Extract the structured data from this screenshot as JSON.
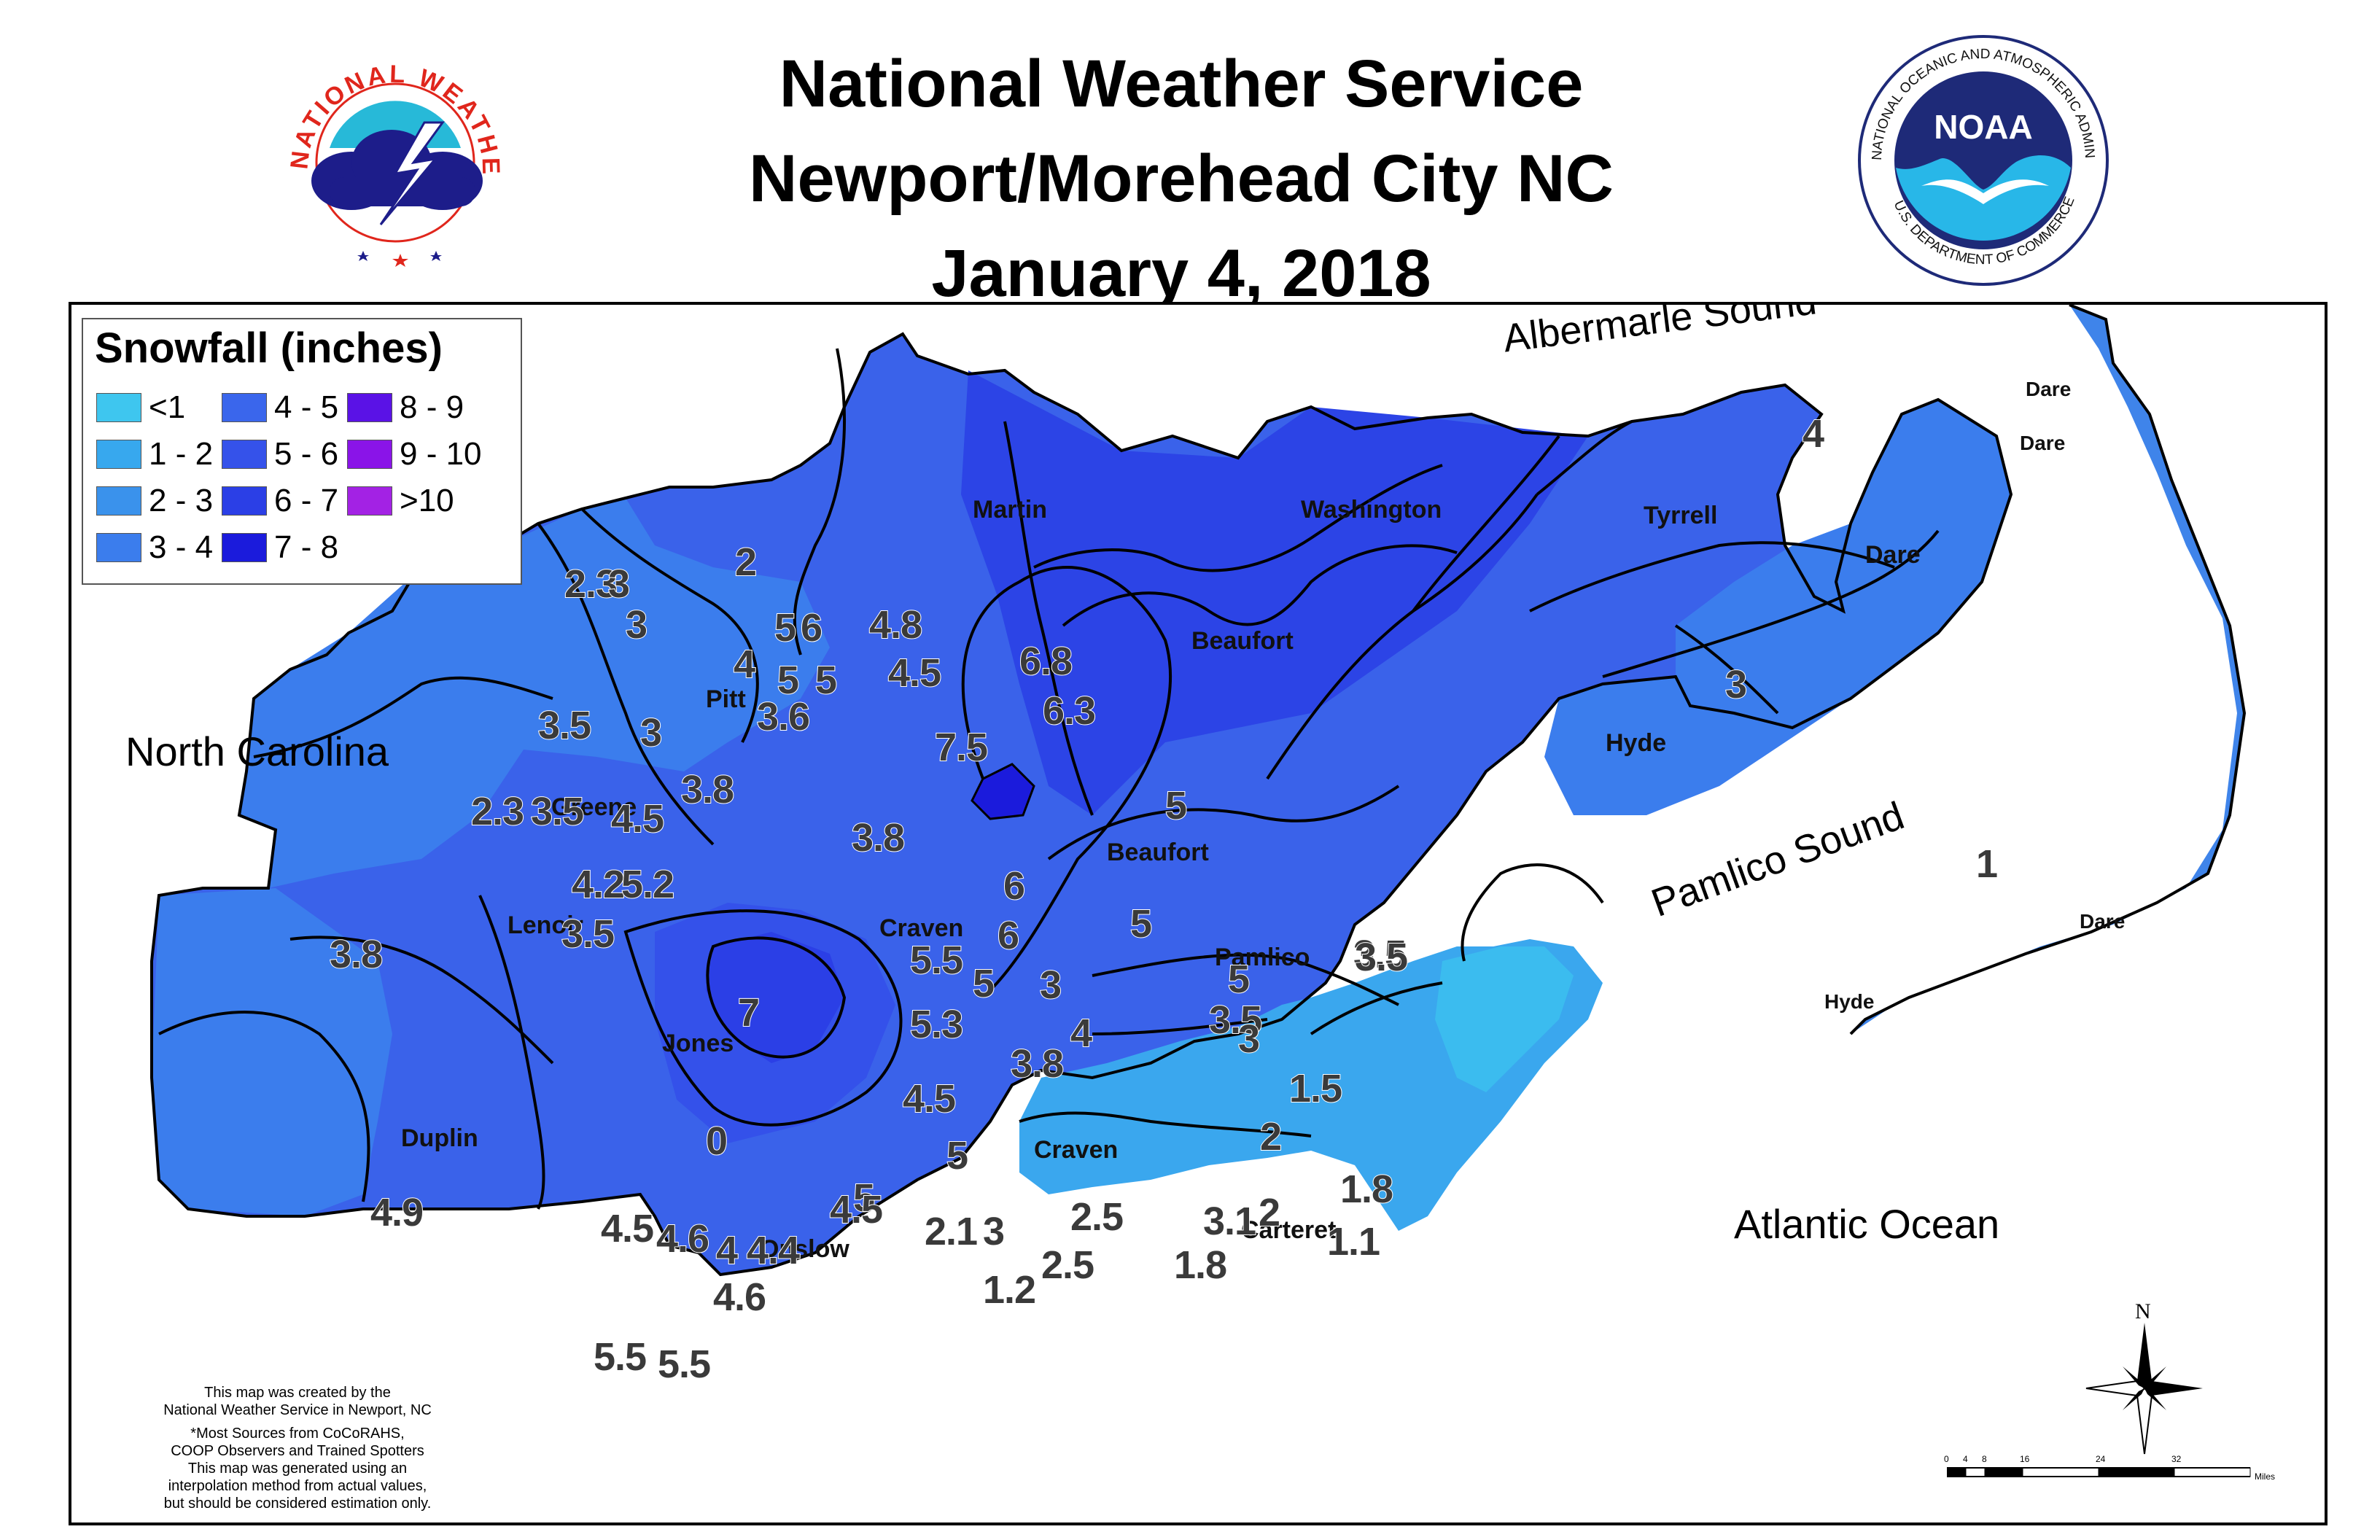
{
  "title": {
    "line1": "National Weather Service",
    "line2": "Newport/Morehead City NC",
    "line3": "January 4, 2018"
  },
  "logos": {
    "nws_text": "NATIONAL WEATHER SERVICE",
    "noaa_text": "NOAA",
    "noaa_ring": "NATIONAL OCEANIC AND ATMOSPHERIC ADMINISTRATION",
    "noaa_ring_bottom": "U.S. DEPARTMENT OF COMMERCE"
  },
  "legend": {
    "title": "Snowfall (inches)",
    "items": [
      {
        "label": "<1",
        "color": "#3ec6ef"
      },
      {
        "label": "1 - 2",
        "color": "#37a8ee"
      },
      {
        "label": "2 - 3",
        "color": "#3a92ec"
      },
      {
        "label": "3 - 4",
        "color": "#3b7ded"
      },
      {
        "label": "4 - 5",
        "color": "#3a66ec"
      },
      {
        "label": "5 - 6",
        "color": "#3552ea"
      },
      {
        "label": "6 - 7",
        "color": "#2b3fe6"
      },
      {
        "label": "7 - 8",
        "color": "#1b1bdc"
      },
      {
        "label": "8 - 9",
        "color": "#5a12e6"
      },
      {
        "label": "9 - 10",
        "color": "#8a14e8"
      },
      {
        "label": ">10",
        "color": "#a322e4"
      }
    ]
  },
  "water_labels": {
    "albemarle": "Albermarle Sound",
    "pamlico": "Pamlico Sound",
    "atlantic": "Atlantic Ocean",
    "state": "North Carolina"
  },
  "counties": {
    "martin": "Martin",
    "washington": "Washington",
    "tyrrell": "Tyrrell",
    "dare_main": "Dare",
    "dare_1": "Dare",
    "dare_2": "Dare",
    "dare_3": "Dare",
    "beaufort_1": "Beaufort",
    "beaufort_2": "Beaufort",
    "hyde_1": "Hyde",
    "hyde_2": "Hyde",
    "pitt": "Pitt",
    "greene": "Greene",
    "lenoir": "Lenoir",
    "craven_1": "Craven",
    "craven_2": "Craven",
    "pamlico": "Pamlico",
    "jones": "Jones",
    "duplin": "Duplin",
    "onslow": "Onslow",
    "carteret": "Carteret"
  },
  "observations": [
    "2.3",
    "3",
    "2",
    "3",
    "5",
    "6",
    "4.8",
    "4",
    "5",
    "5",
    "4.5",
    "3.6",
    "6.8",
    "6.3",
    "3.5",
    "3",
    "7.5",
    "3.8",
    "5",
    "2.3",
    "3.5",
    "4.5",
    "3.8",
    "4.2",
    "5.2",
    "6",
    "5",
    "3.8",
    "3.5",
    "6",
    "5.5",
    "5",
    "3",
    "5",
    "3.5",
    "3.5",
    "7",
    "5.3",
    "4",
    "3",
    "3.8",
    "4.5",
    "1.5",
    "0",
    "5",
    "2",
    "5",
    "4.9",
    "4.5",
    "4.6",
    "4",
    "4.4",
    "4.5",
    "2.1",
    "3",
    "2.5",
    "3.1",
    "2",
    "1.8",
    "3.5",
    "4.6",
    "1.2",
    "2.5",
    "1.8",
    "1.1",
    "5.5",
    "5.5",
    "4",
    "3",
    "1"
  ],
  "notes": {
    "line1": "This map was created by the",
    "line2": "National Weather Service in Newport, NC",
    "line3": "*Most Sources from CoCoRAHS,",
    "line4": "COOP Observers and Trained Spotters",
    "line5": "This map was generated using an",
    "line6": "interpolation method from actual values,",
    "line7": "but should be considered estimation only."
  },
  "compass": {
    "north": "N"
  },
  "scale": {
    "ticks": [
      "0",
      "4",
      "8",
      "16",
      "24",
      "32"
    ],
    "unit": "Miles"
  }
}
